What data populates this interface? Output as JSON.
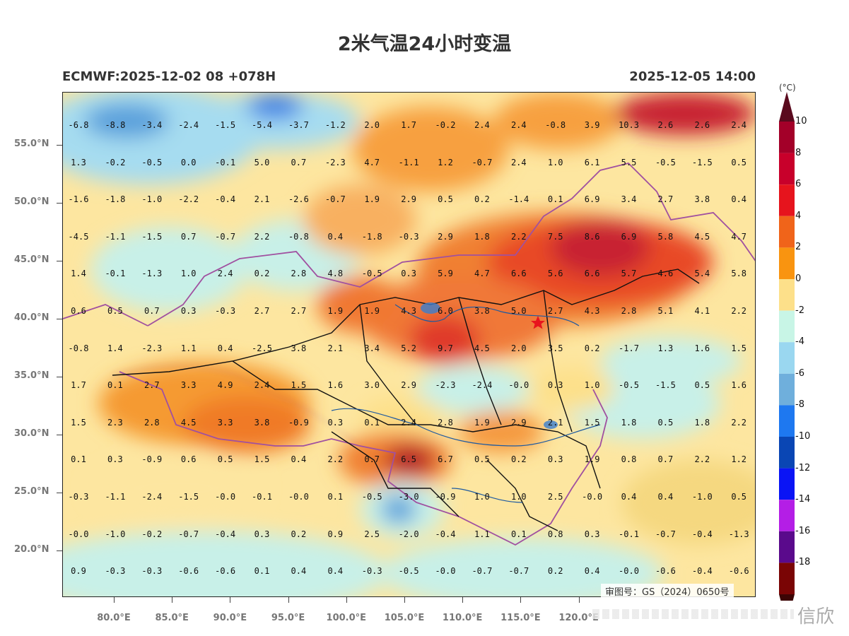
{
  "title": "2米气温24小时变温",
  "model_label": "ECMWF:2025-12-02 08 +078H",
  "valid_label": "2025-12-05 14:00",
  "review_no": "审图号：GS（2024）0650号",
  "watermark": "信欣",
  "colorbar": {
    "unit": "(°C)",
    "labels": [
      "10",
      "8",
      "6",
      "4",
      "2",
      "0",
      "-2",
      "-4",
      "-6",
      "-8",
      "-10",
      "-12",
      "-14",
      "-16",
      "-18"
    ],
    "colors": [
      "#a30029",
      "#c8002b",
      "#e6141d",
      "#f0641a",
      "#f99410",
      "#fde08a",
      "#c8f5e6",
      "#9ad7f0",
      "#6fafdc",
      "#1e78f0",
      "#0a46b4",
      "#0a14f5",
      "#b41ee6",
      "#5a0a8c",
      "#7a0505"
    ]
  },
  "lat_labels": [
    "55.0°N",
    "50.0°N",
    "45.0°N",
    "40.0°N",
    "35.0°N",
    "30.0°N",
    "25.0°N",
    "20.0°N"
  ],
  "lon_labels": [
    "80.0°E",
    "85.0°E",
    "90.0°E",
    "95.0°E",
    "100.0°E",
    "105.0°E",
    "110.0°E",
    "115.0°E",
    "120.0°E"
  ],
  "grid_values": [
    [
      "-6.8",
      "-8.8",
      "-3.4",
      "-2.4",
      "-1.5",
      "-5.4",
      "-3.7",
      "-1.2",
      "2.0",
      "1.7",
      "-0.2",
      "2.4",
      "2.4",
      "-0.8",
      "3.9",
      "10.3",
      "2.6",
      "2.6",
      "2.4"
    ],
    [
      "1.3",
      "-0.2",
      "-0.5",
      "0.0",
      "-0.1",
      "5.0",
      "0.7",
      "-2.3",
      "4.7",
      "-1.1",
      "1.2",
      "-0.7",
      "2.4",
      "1.0",
      "6.1",
      "5.5",
      "-0.5",
      "-1.5",
      "0.5"
    ],
    [
      "-1.6",
      "-1.8",
      "-1.0",
      "-2.2",
      "-0.4",
      "2.1",
      "-2.6",
      "-0.7",
      "1.9",
      "2.9",
      "0.5",
      "0.2",
      "-1.4",
      "0.1",
      "6.9",
      "3.4",
      "2.7",
      "3.8",
      "0.4"
    ],
    [
      "-4.5",
      "-1.1",
      "-1.5",
      "0.7",
      "-0.7",
      "2.2",
      "-0.8",
      "0.4",
      "-1.8",
      "-0.3",
      "2.9",
      "1.8",
      "2.2",
      "7.5",
      "8.6",
      "6.9",
      "5.8",
      "4.5",
      "4.7"
    ],
    [
      "1.4",
      "-0.1",
      "-1.3",
      "1.0",
      "2.4",
      "0.2",
      "2.8",
      "4.8",
      "-0.5",
      "0.3",
      "5.9",
      "4.7",
      "6.6",
      "5.6",
      "6.6",
      "5.7",
      "4.6",
      "5.4",
      "5.8"
    ],
    [
      "0.6",
      "0.5",
      "0.7",
      "0.3",
      "-0.3",
      "2.7",
      "2.7",
      "1.9",
      "1.9",
      "4.3",
      "6.0",
      "3.8",
      "5.0",
      "2.7",
      "4.3",
      "2.8",
      "5.1",
      "4.1",
      "2.2"
    ],
    [
      "-0.8",
      "1.4",
      "-2.3",
      "1.1",
      "0.4",
      "-2.5",
      "3.8",
      "2.1",
      "3.4",
      "5.2",
      "9.7",
      "4.5",
      "2.0",
      "3.5",
      "0.2",
      "-1.7",
      "1.3",
      "1.6",
      "1.5"
    ],
    [
      "1.7",
      "0.1",
      "2.7",
      "3.3",
      "4.9",
      "2.4",
      "1.5",
      "1.6",
      "3.0",
      "2.9",
      "-2.3",
      "-2.4",
      "-0.0",
      "0.3",
      "1.0",
      "-0.5",
      "-1.5",
      "0.5",
      "1.6"
    ],
    [
      "1.5",
      "2.3",
      "2.8",
      "4.5",
      "3.3",
      "3.8",
      "-0.9",
      "0.3",
      "0.1",
      "2.4",
      "2.8",
      "1.9",
      "2.9",
      "2.1",
      "1.5",
      "1.8",
      "0.5",
      "1.8",
      "2.2"
    ],
    [
      "0.1",
      "0.3",
      "-0.9",
      "0.6",
      "0.5",
      "1.5",
      "0.4",
      "2.2",
      "0.7",
      "6.5",
      "6.7",
      "0.5",
      "0.2",
      "0.3",
      "1.9",
      "0.8",
      "0.7",
      "2.2",
      "1.2"
    ],
    [
      "-0.3",
      "-1.1",
      "-2.4",
      "-1.5",
      "-0.0",
      "-0.1",
      "-0.0",
      "0.1",
      "-0.5",
      "-3.0",
      "-0.9",
      "1.0",
      "1.0",
      "2.5",
      "-0.0",
      "0.4",
      "0.4",
      "-1.0",
      "0.5"
    ],
    [
      "-0.0",
      "-1.0",
      "-0.2",
      "-0.7",
      "-0.4",
      "0.3",
      "0.2",
      "0.9",
      "2.5",
      "-2.0",
      "-0.4",
      "1.1",
      "0.1",
      "0.8",
      "0.3",
      "-0.1",
      "-0.7",
      "-0.4",
      "-1.3"
    ],
    [
      "0.9",
      "-0.3",
      "-0.3",
      "-0.6",
      "-0.6",
      "0.1",
      "0.4",
      "0.4",
      "-0.3",
      "-0.5",
      "-0.0",
      "-0.7",
      "-0.7",
      "0.2",
      "0.4",
      "-0.0",
      "-0.6",
      "-0.4",
      "-0.6"
    ]
  ]
}
